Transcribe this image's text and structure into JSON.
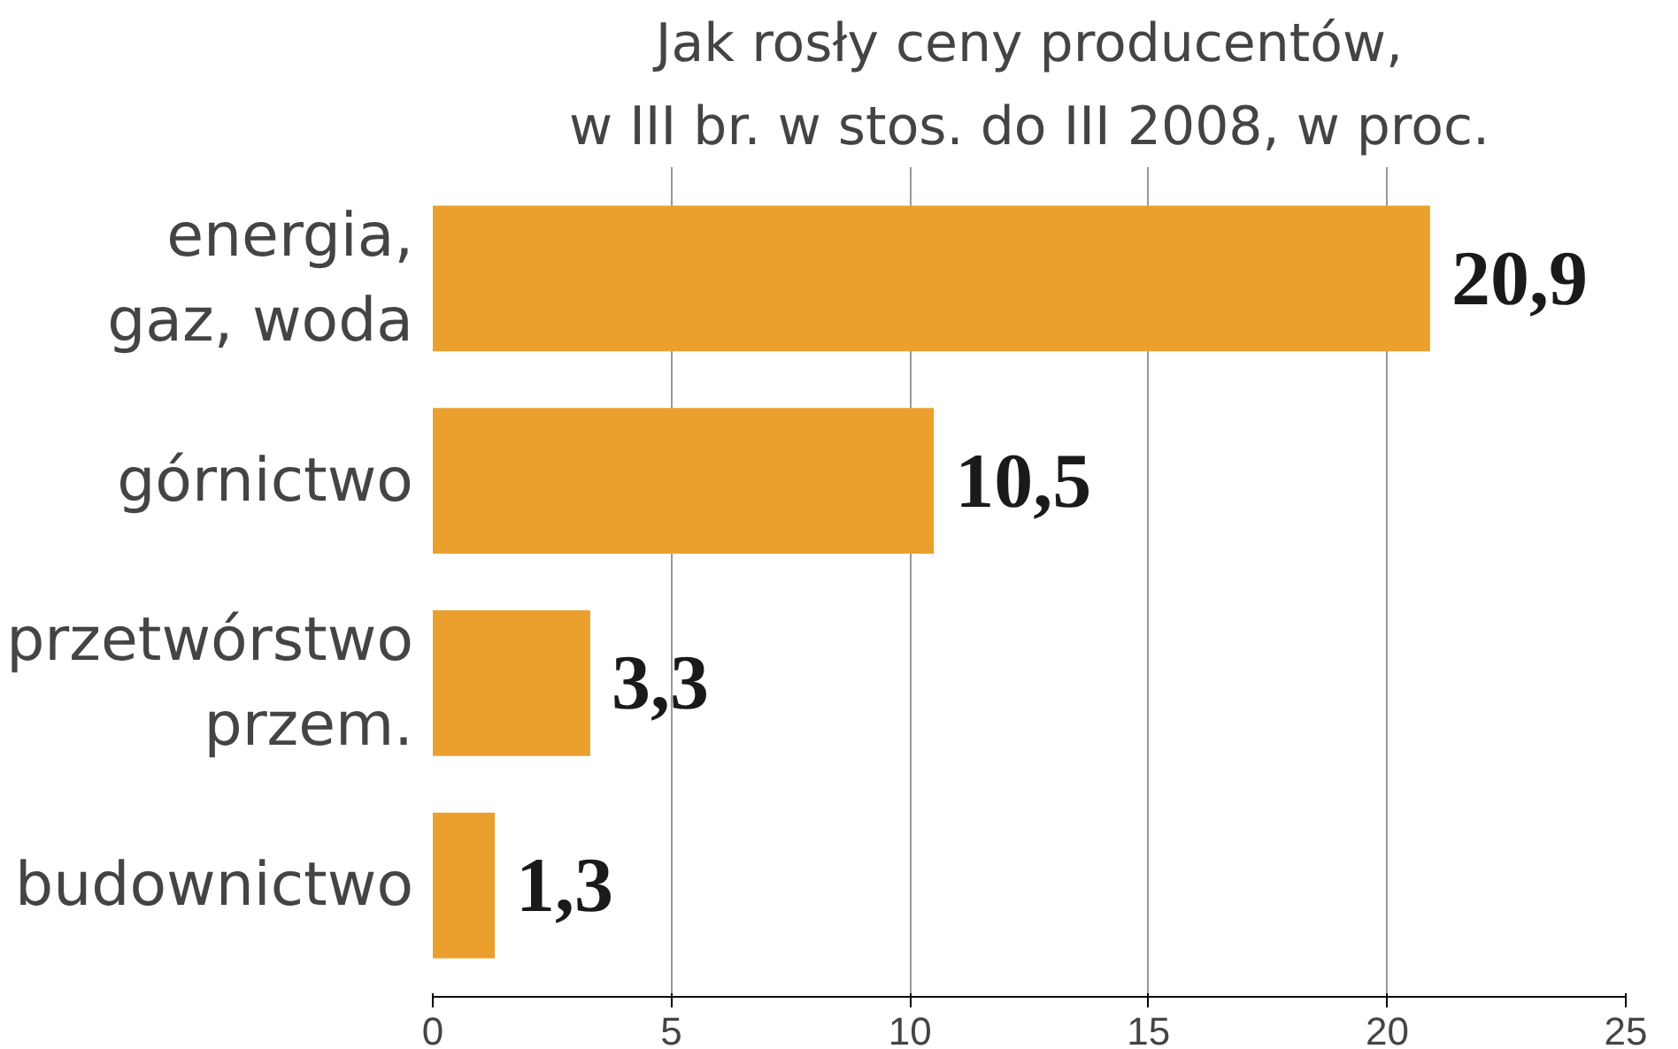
{
  "chart_data": {
    "type": "bar",
    "orientation": "horizontal",
    "title": "Jak rosły ceny producentów,",
    "subtitle": "w III br. w stos. do III 2008, w proc.",
    "categories": [
      "energia,\ngaz, woda",
      "górnictwo",
      "przetwórstwo\nprzem.",
      "budownictwo"
    ],
    "values": [
      20.9,
      10.5,
      3.3,
      1.3
    ],
    "color": "#eba02e",
    "value_labels": [
      "20,9",
      "10,5",
      "3,3",
      "1,3"
    ],
    "xlim": [
      0,
      25
    ],
    "xticks": [
      0,
      5,
      10,
      15,
      20,
      25
    ],
    "grid": "x"
  }
}
